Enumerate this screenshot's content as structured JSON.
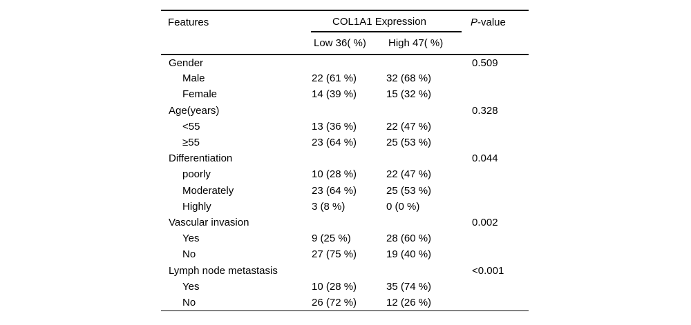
{
  "page": {
    "background": "#ffffff",
    "text_color": "#000000",
    "rule_color": "#000000"
  },
  "table": {
    "header": {
      "features": "Features",
      "group": "COL1A1 Expression",
      "low": "Low 36( %)",
      "high": "High 47( %)",
      "p_italic": "P",
      "p_rest": "-value"
    },
    "rows": [
      {
        "label": "Gender",
        "low": "",
        "high": "",
        "p": "0.509"
      },
      {
        "label": "Male",
        "low": "22 (61 %)",
        "high": "32 (68 %)",
        "p": ""
      },
      {
        "label": "Female",
        "low": "14 (39 %)",
        "high": "15 (32 %)",
        "p": ""
      },
      {
        "label": "Age(years)",
        "low": "",
        "high": "",
        "p": "0.328"
      },
      {
        "label": "<55",
        "low": "13 (36 %)",
        "high": "22 (47 %)",
        "p": ""
      },
      {
        "label": "≥55",
        "low": "23 (64 %)",
        "high": "25 (53 %)",
        "p": ""
      },
      {
        "label": "Differentiation",
        "low": "",
        "high": "",
        "p": "0.044"
      },
      {
        "label": "poorly",
        "low": "10 (28 %)",
        "high": "22 (47 %)",
        "p": ""
      },
      {
        "label": "Moderately",
        "low": "23 (64 %)",
        "high": "25 (53 %)",
        "p": ""
      },
      {
        "label": "Highly",
        "low": "3 (8 %)",
        "high": "0 (0 %)",
        "p": ""
      },
      {
        "label": "Vascular invasion",
        "low": "",
        "high": "",
        "p": "0.002"
      },
      {
        "label": "Yes",
        "low": "9 (25 %)",
        "high": "28 (60 %)",
        "p": ""
      },
      {
        "label": "No",
        "low": "27 (75 %)",
        "high": "19 (40 %)",
        "p": ""
      },
      {
        "label": "Lymph node metastasis",
        "low": "",
        "high": "",
        "p": "<0.001"
      },
      {
        "label": "Yes",
        "low": "10 (28 %)",
        "high": "35 (74 %)",
        "p": ""
      },
      {
        "label": "No",
        "low": "26 (72 %)",
        "high": "12 (26 %)",
        "p": ""
      }
    ]
  }
}
